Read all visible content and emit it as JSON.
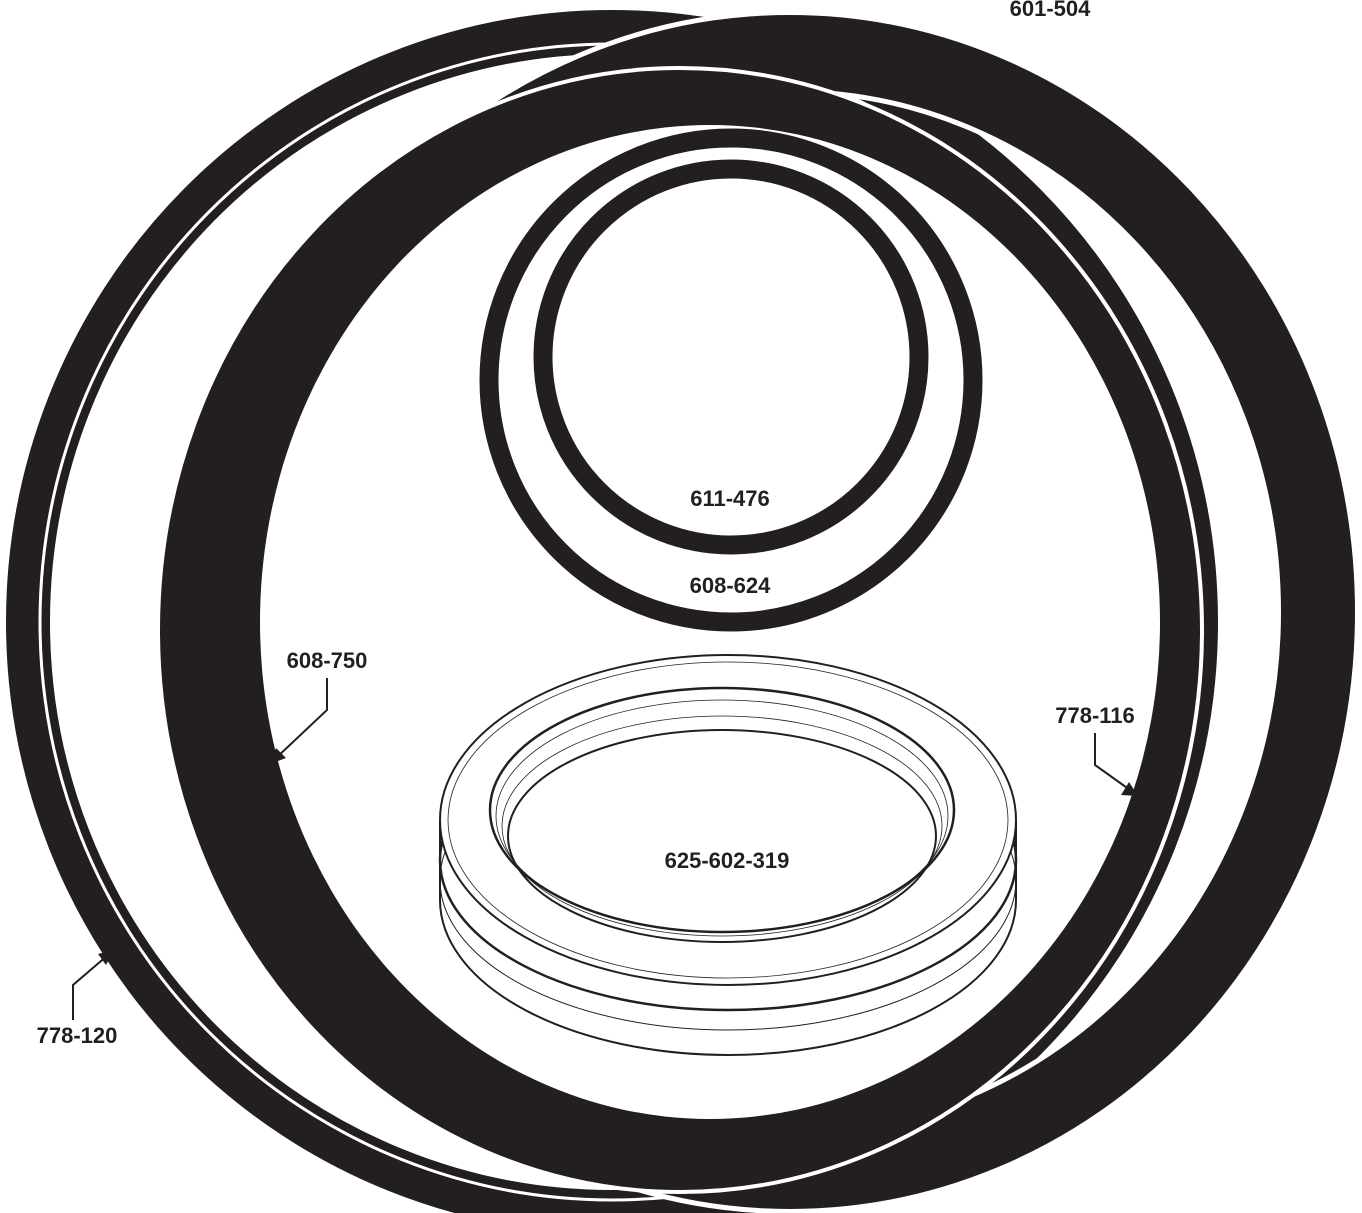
{
  "labels": {
    "ring_601_504": "601-504",
    "ring_611_476": "611-476",
    "ring_608_624": "608-624",
    "ring_608_750": "608-750",
    "ring_778_116": "778-116",
    "seal_625_602_319": "625-602-319",
    "ring_778_120": "778-120"
  }
}
